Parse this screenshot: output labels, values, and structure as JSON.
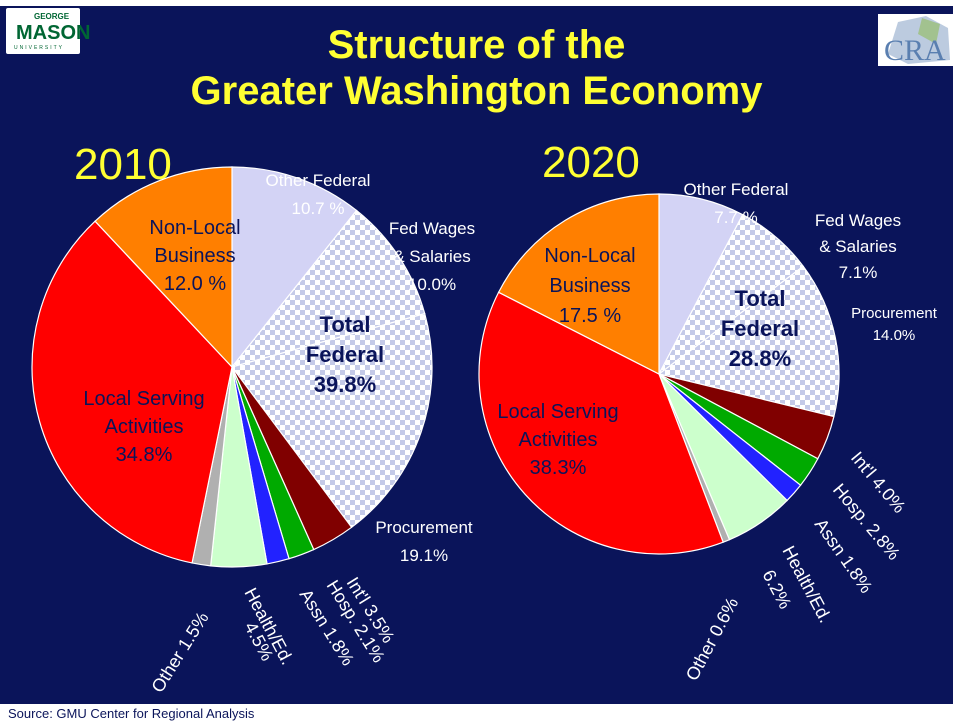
{
  "header": {
    "title_line1": "Structure of the",
    "title_line2": "Greater Washington Economy",
    "logo_left": {
      "top": "GEORGE",
      "main": "MASON",
      "bottom": "UNIVERSITY"
    },
    "logo_right": "CRA"
  },
  "source": "Source: GMU Center for Regional Analysis",
  "colors": {
    "background": "#0a145a",
    "title": "#ffff33",
    "other_federal": "#d3d3f5",
    "fed_wages": "#ffffff",
    "procurement": "#ffffff",
    "checker": "#c4cae8",
    "intl": "#800000",
    "hosp": "#00aa00",
    "assn": "#2222ff",
    "health_ed": "#ccffcc",
    "other": "#b0b0b0",
    "local_serving": "#ff0000",
    "non_local": "#ff7f00"
  },
  "chart_data": [
    {
      "type": "pie",
      "title": "2010",
      "slices": [
        {
          "name": "Other Federal",
          "value": 10.7,
          "label_line1": "Other Federal",
          "label_line2": "10.7 %"
        },
        {
          "name": "Fed Wages & Salaries",
          "value": 10.0,
          "label_line1": "Fed Wages",
          "label_line2": "& Salaries",
          "label_line3": "10.0%"
        },
        {
          "name": "Procurement",
          "value": 19.1,
          "label_line1": "Procurement",
          "label_line2": "19.1%"
        },
        {
          "name": "Int'l",
          "value": 3.5,
          "label": "Int'l 3.5%"
        },
        {
          "name": "Hosp.",
          "value": 2.1,
          "label": "Hosp. 2.1%"
        },
        {
          "name": "Assn",
          "value": 1.8,
          "label": "Assn 1.8%"
        },
        {
          "name": "Health/Ed.",
          "value": 4.5,
          "label_line1": "Health/Ed.",
          "label_line2": "4.5%"
        },
        {
          "name": "Other",
          "value": 1.5,
          "label": "Other 1.5%"
        },
        {
          "name": "Local Serving Activities",
          "value": 34.8,
          "label_line1": "Local Serving",
          "label_line2": "Activities",
          "label_line3": "34.8%"
        },
        {
          "name": "Non-Local Business",
          "value": 12.0,
          "label_line1": "Non-Local",
          "label_line2": "Business",
          "label_line3": "12.0 %"
        }
      ],
      "total_federal": {
        "line1": "Total",
        "line2": "Federal",
        "line3": "39.8%",
        "value": 39.8
      }
    },
    {
      "type": "pie",
      "title": "2020",
      "slices": [
        {
          "name": "Other Federal",
          "value": 7.7,
          "label_line1": "Other Federal",
          "label_line2": "7.7 %"
        },
        {
          "name": "Fed Wages & Salaries",
          "value": 7.1,
          "label_line1": "Fed Wages",
          "label_line2": "& Salaries",
          "label_line3": "7.1%"
        },
        {
          "name": "Procurement",
          "value": 14.0,
          "label_line1": "Procurement",
          "label_line2": "14.0%"
        },
        {
          "name": "Int'l",
          "value": 4.0,
          "label": "Int'l 4.0%"
        },
        {
          "name": "Hosp.",
          "value": 2.8,
          "label": "Hosp. 2.8%"
        },
        {
          "name": "Assn",
          "value": 1.8,
          "label": "Assn 1.8%"
        },
        {
          "name": "Health/Ed.",
          "value": 6.2,
          "label_line1": "Health/Ed.",
          "label_line2": "6.2%"
        },
        {
          "name": "Other",
          "value": 0.6,
          "label": "Other 0.6%"
        },
        {
          "name": "Local Serving Activities",
          "value": 38.3,
          "label_line1": "Local Serving",
          "label_line2": "Activities",
          "label_line3": "38.3%"
        },
        {
          "name": "Non-Local Business",
          "value": 17.5,
          "label_line1": "Non-Local",
          "label_line2": "Business",
          "label_line3": "17.5 %"
        }
      ],
      "total_federal": {
        "line1": "Total",
        "line2": "Federal",
        "line3": "28.8%",
        "value": 28.8
      }
    }
  ]
}
